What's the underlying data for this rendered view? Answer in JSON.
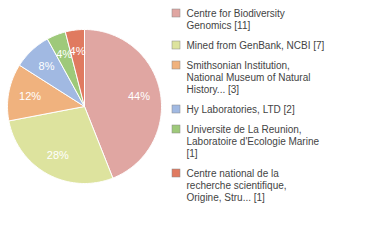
{
  "chart_data": {
    "type": "pie",
    "categories": [
      "Centre for Biodiversity Genomics [11]",
      "Mined from GenBank, NCBI [7]",
      "Smithsonian Institution, National Museum of Natural History... [3]",
      "Hy Laboratories, LTD [2]",
      "Universite de La Reunion, Laboratoire d'Ecologie Marine [1]",
      "Centre national de la recherche scientifique, Origine, Stru... [1]"
    ],
    "values": [
      44,
      28,
      12,
      8,
      4,
      4
    ],
    "value_labels": [
      "44%",
      "28%",
      "12%",
      "8%",
      "4%",
      "4%"
    ],
    "colors": [
      "#e0a6a2",
      "#dde39e",
      "#f0b27e",
      "#a1b9e2",
      "#9ec97a",
      "#e07a60"
    ],
    "data_labels": true,
    "legend": "right"
  }
}
